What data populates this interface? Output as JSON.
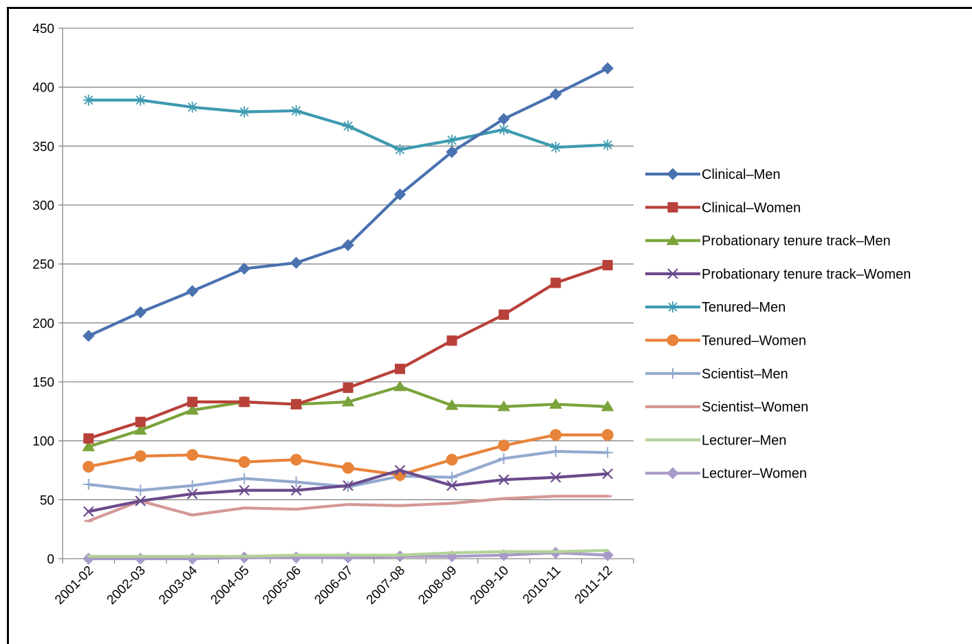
{
  "chart_data": {
    "type": "line",
    "title": "",
    "xlabel": "",
    "ylabel": "",
    "ylim": [
      0,
      450
    ],
    "yticks": [
      0,
      50,
      100,
      150,
      200,
      250,
      300,
      350,
      400,
      450
    ],
    "grid": "horizontal",
    "legend": "right",
    "categories": [
      "2001-02",
      "2002-03",
      "2003-04",
      "2004-05",
      "2005-06",
      "2006-07",
      "2007-08",
      "2008-09",
      "2009-10",
      "2010-11",
      "2011-12"
    ],
    "series": [
      {
        "name": "Clinical–Men",
        "color": "#4a72b0",
        "marker": "diamond",
        "values": [
          189,
          209,
          227,
          246,
          251,
          266,
          309,
          345,
          373,
          394,
          416
        ]
      },
      {
        "name": "Clinical–Women",
        "color": "#b8413a",
        "marker": "square",
        "values": [
          102,
          116,
          133,
          133,
          131,
          145,
          161,
          185,
          207,
          234,
          249
        ]
      },
      {
        "name": "Probationary tenure track–Men",
        "color": "#7aa33b",
        "marker": "triangle",
        "values": [
          95,
          109,
          126,
          133,
          131,
          133,
          146,
          130,
          129,
          131,
          129
        ]
      },
      {
        "name": "Probationary tenure track–Women",
        "color": "#6b4a8c",
        "marker": "x",
        "values": [
          40,
          49,
          55,
          58,
          58,
          62,
          75,
          62,
          67,
          69,
          72
        ]
      },
      {
        "name": "Tenured–Men",
        "color": "#3d9ab0",
        "marker": "star",
        "values": [
          389,
          389,
          383,
          379,
          380,
          367,
          347,
          355,
          364,
          349,
          351
        ]
      },
      {
        "name": "Tenured–Women",
        "color": "#e8833a",
        "marker": "circle",
        "values": [
          78,
          87,
          88,
          82,
          84,
          77,
          71,
          84,
          96,
          105,
          105
        ]
      },
      {
        "name": "Scientist–Men",
        "color": "#93a9cf",
        "marker": "plus",
        "values": [
          63,
          58,
          62,
          68,
          65,
          61,
          70,
          69,
          85,
          91,
          90
        ]
      },
      {
        "name": "Scientist–Women",
        "color": "#d49896",
        "marker": "dash",
        "values": [
          32,
          49,
          37,
          43,
          42,
          46,
          45,
          47,
          51,
          53,
          53
        ]
      },
      {
        "name": "Lecturer–Men",
        "color": "#b3d398",
        "marker": "none",
        "values": [
          2,
          2,
          2,
          2,
          3,
          3,
          3,
          5,
          6,
          6,
          7
        ]
      },
      {
        "name": "Lecturer–Women",
        "color": "#a89ac8",
        "marker": "diamond",
        "values": [
          0,
          0,
          0,
          1,
          1,
          1,
          2,
          2,
          3,
          5,
          3
        ]
      }
    ]
  }
}
